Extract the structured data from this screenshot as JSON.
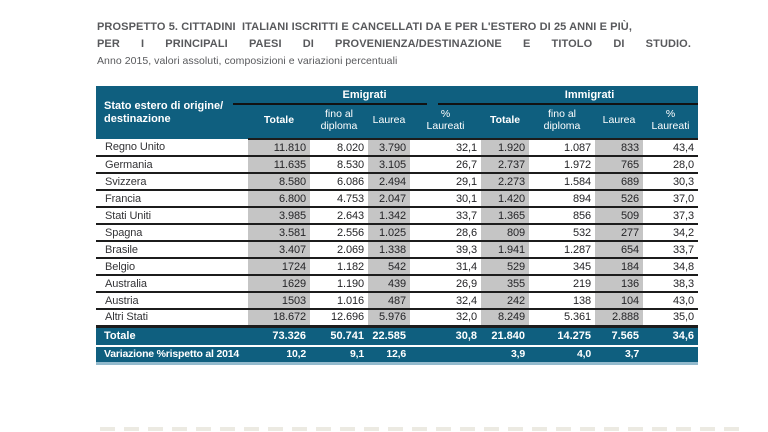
{
  "title": {
    "line1": "PROSPETTO 5. CITTADINI  ITALIANI ISCRITTI E CANCELLATI DA E PER L'ESTERO DI 25 ANNI E PIÙ,",
    "line2": "PER I PRINCIPALI PAESI DI PROVENIENZA/DESTINAZIONE E TITOLO DI STUDIO.",
    "line3": "Anno 2015, valori assoluti, composizioni e variazioni percentuali"
  },
  "table": {
    "row_header_line1": "Stato estero di origine/",
    "row_header_line2": "destinazione",
    "groups": [
      {
        "label": "Emigrati"
      },
      {
        "label": "Immigrati"
      }
    ],
    "subheaders": [
      "Totale",
      "fino al diploma",
      "Laurea",
      "% Laureati",
      "Totale",
      "fino al diploma",
      "Laurea",
      "% Laureati"
    ],
    "rows": [
      {
        "label": "Regno Unito",
        "values": [
          "11.810",
          "8.020",
          "3.790",
          "32,1",
          "1.920",
          "1.087",
          "833",
          "43,4"
        ]
      },
      {
        "label": "Germania",
        "values": [
          "11.635",
          "8.530",
          "3.105",
          "26,7",
          "2.737",
          "1.972",
          "765",
          "28,0"
        ]
      },
      {
        "label": "Svizzera",
        "values": [
          "8.580",
          "6.086",
          "2.494",
          "29,1",
          "2.273",
          "1.584",
          "689",
          "30,3"
        ]
      },
      {
        "label": "Francia",
        "values": [
          "6.800",
          "4.753",
          "2.047",
          "30,1",
          "1.420",
          "894",
          "526",
          "37,0"
        ]
      },
      {
        "label": "Stati Uniti",
        "values": [
          "3.985",
          "2.643",
          "1.342",
          "33,7",
          "1.365",
          "856",
          "509",
          "37,3"
        ]
      },
      {
        "label": "Spagna",
        "values": [
          "3.581",
          "2.556",
          "1.025",
          "28,6",
          "809",
          "532",
          "277",
          "34,2"
        ]
      },
      {
        "label": "Brasile",
        "values": [
          "3.407",
          "2.069",
          "1.338",
          "39,3",
          "1.941",
          "1.287",
          "654",
          "33,7"
        ]
      },
      {
        "label": "Belgio",
        "values": [
          "1724",
          "1.182",
          "542",
          "31,4",
          "529",
          "345",
          "184",
          "34,8"
        ]
      },
      {
        "label": "Australia",
        "values": [
          "1629",
          "1.190",
          "439",
          "26,9",
          "355",
          "219",
          "136",
          "38,3"
        ]
      },
      {
        "label": "Austria",
        "values": [
          "1503",
          "1.016",
          "487",
          "32,4",
          "242",
          "138",
          "104",
          "43,0"
        ]
      },
      {
        "label": "Altri Stati",
        "values": [
          "18.672",
          "12.696",
          "5.976",
          "32,0",
          "8.249",
          "5.361",
          "2.888",
          "35,0"
        ]
      }
    ],
    "totale": {
      "label": "Totale",
      "values": [
        "73.326",
        "50.741",
        "22.585",
        "30,8",
        "21.840",
        "14.275",
        "7.565",
        "34,6"
      ]
    },
    "variazione": {
      "label": "Variazione %rispetto al 2014",
      "values": [
        "10,2",
        "9,1",
        "12,6",
        "",
        "3,9",
        "4,0",
        "3,7",
        ""
      ]
    }
  },
  "colors": {
    "header_bg": "#0f5f7f",
    "shaded_column": "#c5c5c5",
    "row_line": "#1c1c1c",
    "bottom_edge": "#93bacd",
    "title_text": "#58595c"
  }
}
